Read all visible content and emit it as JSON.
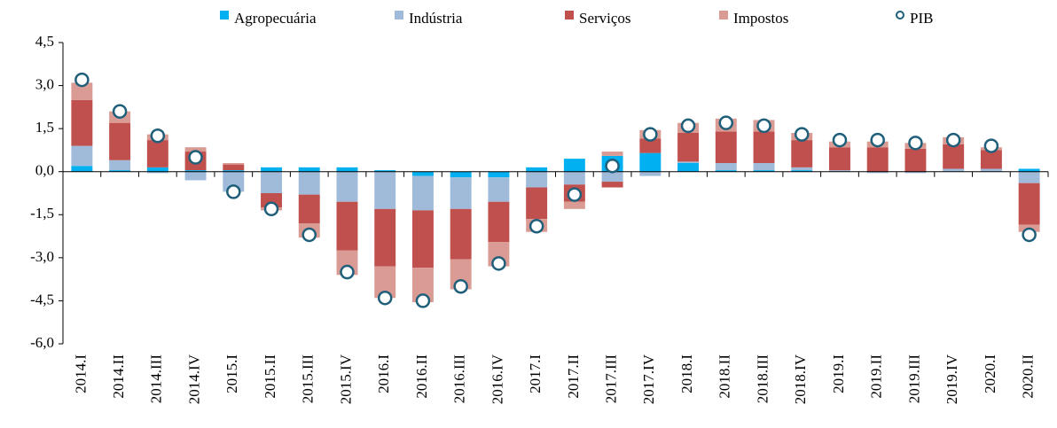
{
  "chart_data": {
    "type": "bar",
    "stacked": true,
    "categories": [
      "2014.I",
      "2014.II",
      "2014.III",
      "2014.IV",
      "2015.I",
      "2015.II",
      "2015.III",
      "2015.IV",
      "2016.I",
      "2016.II",
      "2016.III",
      "2016.IV",
      "2017.I",
      "2017.II",
      "2017.III",
      "2017.IV",
      "2018.I",
      "2018.II",
      "2018.III",
      "2018.IV",
      "2019.I",
      "2019.II",
      "2019.III",
      "2019.IV",
      "2020.I",
      "2020.II"
    ],
    "series": [
      {
        "name": "Agropecuária",
        "color": "#00b0f0",
        "values": [
          0.2,
          0.05,
          0.15,
          0.05,
          0.05,
          0.15,
          0.15,
          0.15,
          0.05,
          -0.15,
          -0.2,
          -0.2,
          0.15,
          0.45,
          0.55,
          0.65,
          0.3,
          0.05,
          0.05,
          0.05,
          0.0,
          0.0,
          0.0,
          0.0,
          0.0,
          0.1
        ]
      },
      {
        "name": "Indústria",
        "color": "#9fbbd9",
        "values": [
          0.7,
          0.35,
          -0.05,
          -0.3,
          -0.7,
          -0.75,
          -0.8,
          -1.05,
          -1.3,
          -1.2,
          -1.1,
          -0.85,
          -0.55,
          -0.45,
          -0.35,
          -0.15,
          0.05,
          0.25,
          0.25,
          0.1,
          0.05,
          -0.05,
          -0.05,
          0.1,
          0.1,
          -0.4
        ]
      },
      {
        "name": "Serviços",
        "color": "#c0504d",
        "values": [
          1.6,
          1.3,
          0.95,
          0.65,
          0.2,
          -0.5,
          -1.0,
          -1.7,
          -2.0,
          -2.0,
          -1.75,
          -1.4,
          -1.1,
          -0.6,
          -0.2,
          0.5,
          1.0,
          1.1,
          1.1,
          0.95,
          0.8,
          0.85,
          0.8,
          0.85,
          0.65,
          -1.45
        ]
      },
      {
        "name": "Impostos",
        "color": "#d99b94",
        "values": [
          0.6,
          0.4,
          0.2,
          0.15,
          0.05,
          -0.1,
          -0.5,
          -0.85,
          -1.1,
          -1.2,
          -1.05,
          -0.85,
          -0.45,
          -0.25,
          0.15,
          0.3,
          0.35,
          0.45,
          0.4,
          0.25,
          0.2,
          0.2,
          0.2,
          0.25,
          0.1,
          -0.25
        ]
      },
      {
        "name": "PIB",
        "type": "scatter",
        "color": "#1f5f7a",
        "values": [
          3.2,
          2.1,
          1.25,
          0.5,
          -0.7,
          -1.3,
          -2.2,
          -3.5,
          -4.4,
          -4.5,
          -4.0,
          -3.2,
          -1.9,
          -0.8,
          0.2,
          1.3,
          1.6,
          1.7,
          1.6,
          1.3,
          1.1,
          1.1,
          1.0,
          1.1,
          0.9,
          -2.2
        ]
      }
    ],
    "ylim": [
      -6.0,
      4.5
    ],
    "yticks": [
      {
        "value": 4.5,
        "label": "4,5"
      },
      {
        "value": 3.0,
        "label": "3,0"
      },
      {
        "value": 1.5,
        "label": "1,5"
      },
      {
        "value": 0,
        "label": "0,0"
      },
      {
        "value": -1.5,
        "label": "-1,5"
      },
      {
        "value": -3.0,
        "label": "-3,0"
      },
      {
        "value": -4.5,
        "label": "-4,5"
      },
      {
        "value": -6.0,
        "label": "-6,0"
      }
    ],
    "grid": false,
    "legend": "top"
  }
}
